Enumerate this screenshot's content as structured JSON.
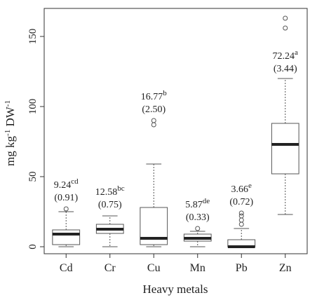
{
  "chart_data": {
    "type": "box",
    "title": "",
    "xlabel": "Heavy metals",
    "ylabel": {
      "base": "mg kg",
      "sup1": "-1",
      "mid": " DW",
      "sup2": "-1"
    },
    "ylim": [
      -5,
      170
    ],
    "yticks": [
      0,
      50,
      100,
      150
    ],
    "categories": [
      "Cd",
      "Cr",
      "Cu",
      "Mn",
      "Pb",
      "Zn"
    ],
    "boxes": [
      {
        "name": "Cd",
        "min": 0,
        "q1": 1.5,
        "median": 9,
        "q3": 12,
        "max": 25,
        "outliers": [
          27
        ]
      },
      {
        "name": "Cr",
        "min": 0,
        "q1": 9.5,
        "median": 12.5,
        "q3": 16,
        "max": 22,
        "outliers": []
      },
      {
        "name": "Cu",
        "min": 0,
        "q1": 1.5,
        "median": 6,
        "q3": 28,
        "max": 59,
        "outliers": [
          87,
          90
        ]
      },
      {
        "name": "Mn",
        "min": 0,
        "q1": 4,
        "median": 6,
        "q3": 9,
        "max": 11,
        "outliers": [
          13
        ]
      },
      {
        "name": "Pb",
        "min": 0,
        "q1": 0,
        "median": 0,
        "q3": 5,
        "max": 13,
        "outliers": [
          16,
          19,
          22,
          24
        ]
      },
      {
        "name": "Zn",
        "min": 23,
        "q1": 52,
        "median": 73,
        "q3": 88,
        "max": 120,
        "outliers": [
          156,
          163
        ]
      }
    ],
    "annotations": [
      {
        "category": "Cd",
        "mean": "9.24",
        "letters": "cd",
        "se": "(0.91)"
      },
      {
        "category": "Cr",
        "mean": "12.58",
        "letters": "bc",
        "se": "(0.75)"
      },
      {
        "category": "Cu",
        "mean": "16.77",
        "letters": "b",
        "se": "(2.50)"
      },
      {
        "category": "Mn",
        "mean": "5.87",
        "letters": "de",
        "se": "(0.33)"
      },
      {
        "category": "Pb",
        "mean": "3.66",
        "letters": "e",
        "se": "(0.72)"
      },
      {
        "category": "Zn",
        "mean": "72.24",
        "letters": "a",
        "se": "(3.44)"
      }
    ],
    "grid": false,
    "legend": "none"
  }
}
